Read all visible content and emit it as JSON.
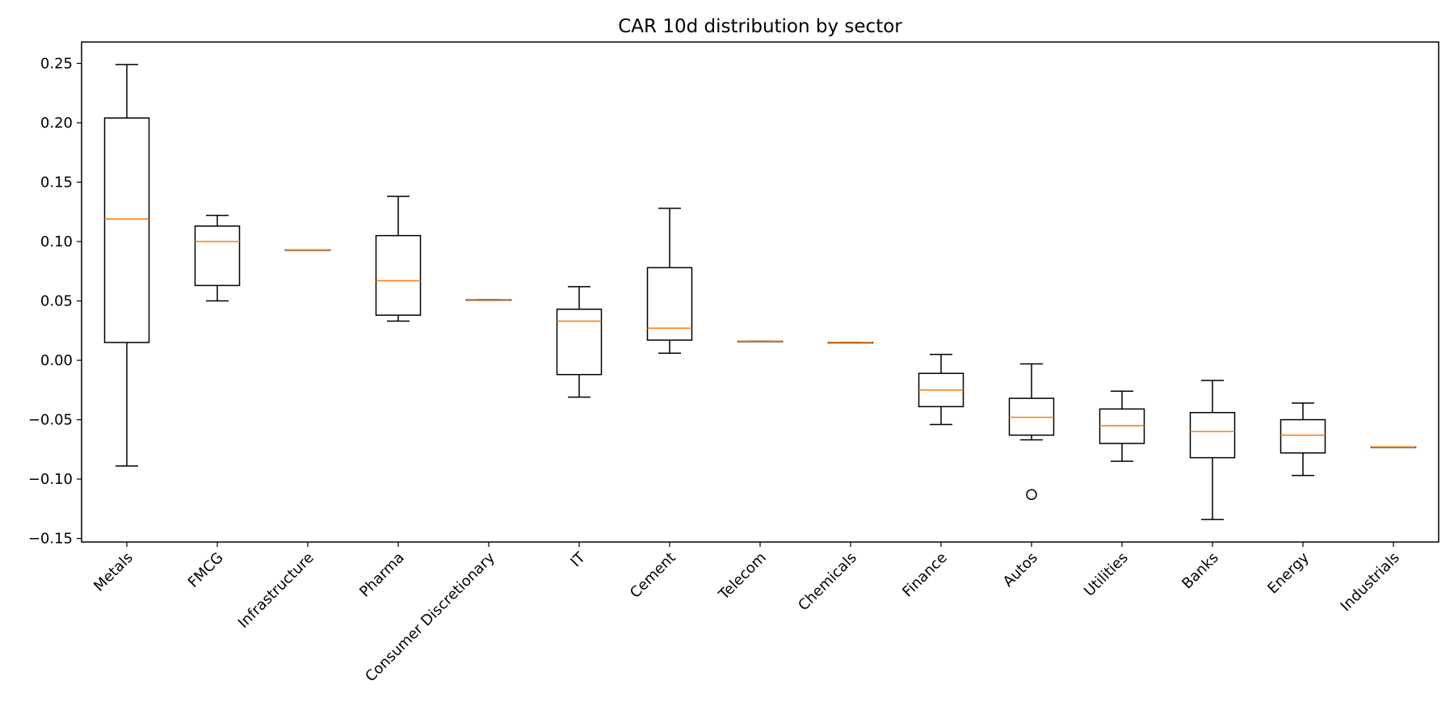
{
  "chart_data": {
    "type": "box",
    "title": "CAR 10d distribution by sector",
    "xlabel": "",
    "ylabel": "",
    "ylim": [
      -0.153,
      0.268
    ],
    "yticks": [
      -0.15,
      -0.1,
      -0.05,
      0.0,
      0.05,
      0.1,
      0.15,
      0.2,
      0.25
    ],
    "ytick_labels": [
      "−0.15",
      "−0.10",
      "−0.05",
      "0.00",
      "0.05",
      "0.10",
      "0.15",
      "0.20",
      "0.25"
    ],
    "grid": false,
    "colors": {
      "box": "#000000",
      "median": "#ff7f0e"
    },
    "categories": [
      "Metals",
      "FMCG",
      "Infrastructure",
      "Pharma",
      "Consumer Discretionary",
      "IT",
      "Cement",
      "Telecom",
      "Chemicals",
      "Finance",
      "Autos",
      "Utilities",
      "Banks",
      "Energy",
      "Industrials"
    ],
    "boxes": [
      {
        "whisker_low": -0.089,
        "q1": 0.015,
        "median": 0.119,
        "q3": 0.204,
        "whisker_high": 0.249,
        "outliers": []
      },
      {
        "whisker_low": 0.05,
        "q1": 0.063,
        "median": 0.1,
        "q3": 0.113,
        "whisker_high": 0.122,
        "outliers": []
      },
      {
        "whisker_low": 0.093,
        "q1": 0.093,
        "median": 0.093,
        "q3": 0.093,
        "whisker_high": 0.093,
        "outliers": []
      },
      {
        "whisker_low": 0.033,
        "q1": 0.038,
        "median": 0.067,
        "q3": 0.105,
        "whisker_high": 0.138,
        "outliers": []
      },
      {
        "whisker_low": 0.051,
        "q1": 0.051,
        "median": 0.051,
        "q3": 0.051,
        "whisker_high": 0.051,
        "outliers": []
      },
      {
        "whisker_low": -0.031,
        "q1": -0.012,
        "median": 0.033,
        "q3": 0.043,
        "whisker_high": 0.062,
        "outliers": []
      },
      {
        "whisker_low": 0.006,
        "q1": 0.017,
        "median": 0.027,
        "q3": 0.078,
        "whisker_high": 0.128,
        "outliers": []
      },
      {
        "whisker_low": 0.016,
        "q1": 0.016,
        "median": 0.016,
        "q3": 0.016,
        "whisker_high": 0.016,
        "outliers": []
      },
      {
        "whisker_low": 0.015,
        "q1": 0.015,
        "median": 0.015,
        "q3": 0.015,
        "whisker_high": 0.015,
        "outliers": []
      },
      {
        "whisker_low": -0.054,
        "q1": -0.039,
        "median": -0.025,
        "q3": -0.011,
        "whisker_high": 0.005,
        "outliers": []
      },
      {
        "whisker_low": -0.067,
        "q1": -0.063,
        "median": -0.048,
        "q3": -0.032,
        "whisker_high": -0.003,
        "outliers": [
          -0.113
        ]
      },
      {
        "whisker_low": -0.085,
        "q1": -0.07,
        "median": -0.055,
        "q3": -0.041,
        "whisker_high": -0.026,
        "outliers": []
      },
      {
        "whisker_low": -0.134,
        "q1": -0.082,
        "median": -0.06,
        "q3": -0.044,
        "whisker_high": -0.017,
        "outliers": []
      },
      {
        "whisker_low": -0.097,
        "q1": -0.078,
        "median": -0.063,
        "q3": -0.05,
        "whisker_high": -0.036,
        "outliers": []
      },
      {
        "whisker_low": -0.073,
        "q1": -0.073,
        "median": -0.073,
        "q3": -0.073,
        "whisker_high": -0.073,
        "outliers": []
      }
    ]
  }
}
